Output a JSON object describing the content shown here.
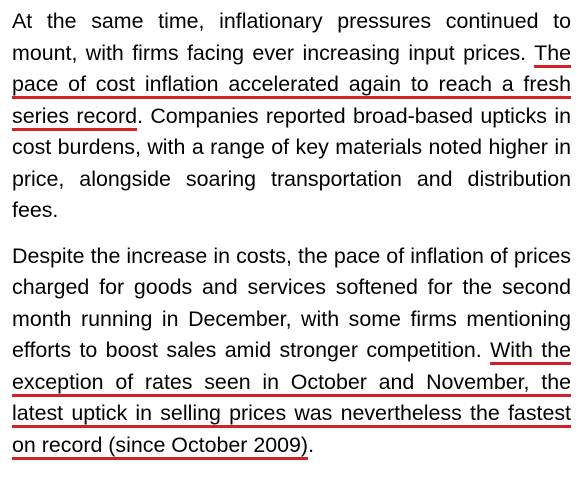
{
  "paragraphs": [
    {
      "intro": "At the same time, inflationary pressures continued to mount, with firms facing ever increasing input prices. ",
      "highlight": "The pace of cost inflation accelerated again to reach a fresh series record",
      "outro": ". Companies reported broad-based upticks in cost burdens, with a range of key materials noted higher in price, alongside soaring transportation and distribution fees."
    },
    {
      "intro": "Despite the increase in costs, the pace of inflation of prices charged for goods and services softened for the second month running in December, with some firms mentioning efforts to boost sales amid stronger competition. ",
      "highlight": "With the exception of rates seen in October and November, the latest uptick in selling prices was nevertheless the fastest on record (since October 2009)",
      "outro": "."
    }
  ],
  "colors": {
    "text": "#000000",
    "underline": "#d42027",
    "background": "#ffffff"
  }
}
